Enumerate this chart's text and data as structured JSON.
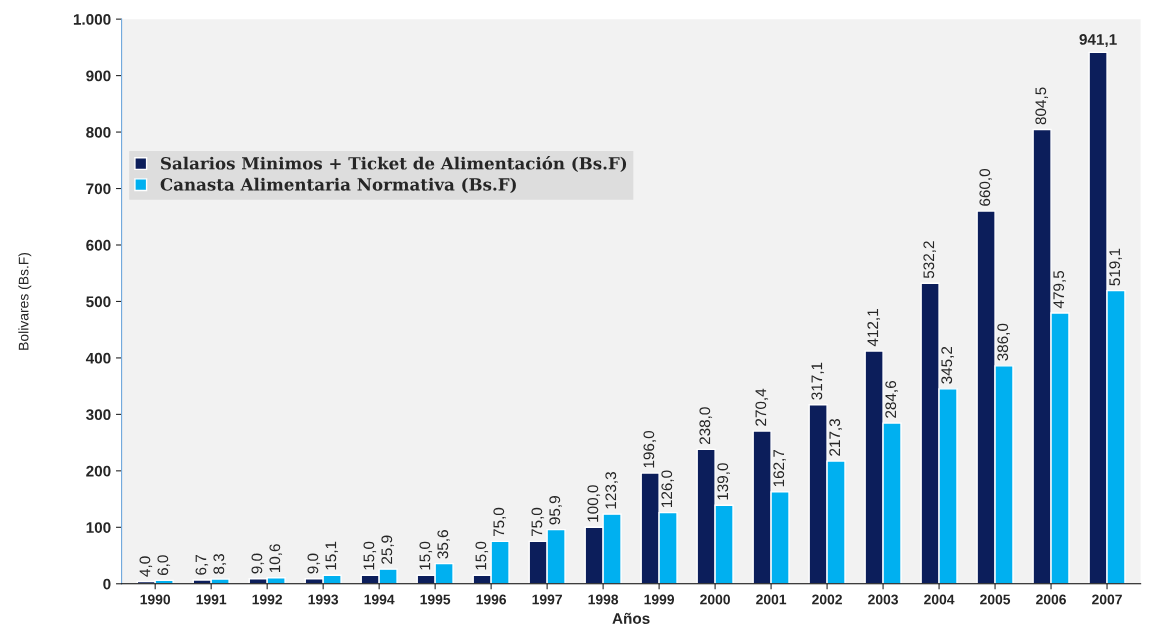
{
  "chart_data": {
    "type": "bar",
    "xlabel": "Años",
    "ylabel": "Bolivares (Bs.F)",
    "categories": [
      "1990",
      "1991",
      "1992",
      "1993",
      "1994",
      "1995",
      "1996",
      "1997",
      "1998",
      "1999",
      "2000",
      "2001",
      "2002",
      "2003",
      "2004",
      "2005",
      "2006",
      "2007"
    ],
    "series": [
      {
        "name": "Salarios Minimos + Ticket de Alimentación (Bs.F)",
        "color": "#0c1e5b",
        "values": [
          4.0,
          6.7,
          9.0,
          9.0,
          15.0,
          15.0,
          15.0,
          75.0,
          100.0,
          196.0,
          238.0,
          270.4,
          317.1,
          412.1,
          532.2,
          660.0,
          804.5,
          941.1
        ],
        "value_labels": [
          "4,0",
          "6,7",
          "9,0",
          "9,0",
          "15,0",
          "15,0",
          "15,0",
          "75,0",
          "100,0",
          "196,0",
          "238,0",
          "270,4",
          "317,1",
          "412,1",
          "532,2",
          "660,0",
          "804,5",
          "941,1"
        ]
      },
      {
        "name": "Canasta Alimentaria Normativa (Bs.F)",
        "color": "#00b0f0",
        "values": [
          6.0,
          8.3,
          10.6,
          15.1,
          25.9,
          35.6,
          75.0,
          95.9,
          123.3,
          126.0,
          139.0,
          162.7,
          217.3,
          284.6,
          345.2,
          386.0,
          479.5,
          519.1
        ],
        "value_labels": [
          "6,0",
          "8,3",
          "10,6",
          "15,1",
          "25,9",
          "35,6",
          "75,0",
          "95,9",
          "123,3",
          "126,0",
          "139,0",
          "162,7",
          "217,3",
          "284,6",
          "345,2",
          "386,0",
          "479,5",
          "519,1"
        ]
      }
    ],
    "ylim": [
      0,
      1000
    ],
    "yticks": [
      0,
      100,
      200,
      300,
      400,
      500,
      600,
      700,
      800,
      900,
      {
        "value": 1000,
        "label": "1.000"
      }
    ],
    "legend": "top left",
    "grid": false
  }
}
